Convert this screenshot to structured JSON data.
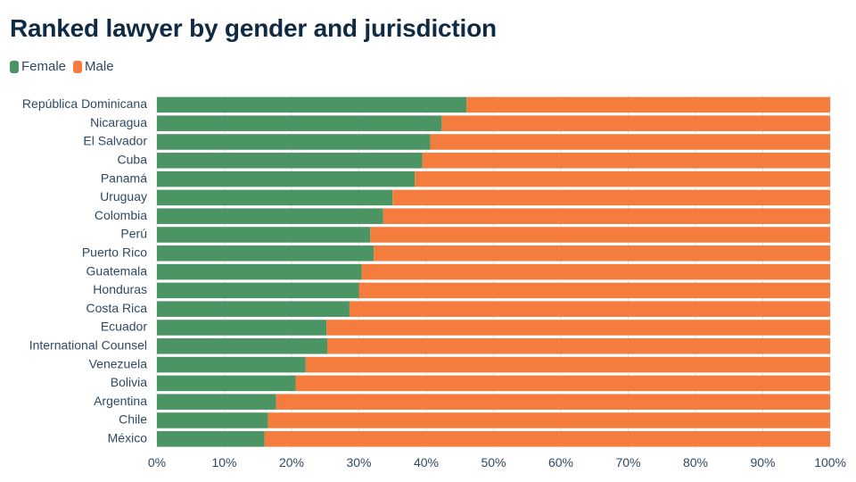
{
  "chart_data": {
    "type": "bar",
    "orientation": "horizontal",
    "stacked": true,
    "title": "Ranked lawyer by gender and jurisdiction",
    "legend_position": "top-left",
    "grid": true,
    "xlim": [
      0,
      100
    ],
    "x_ticks": [
      "0%",
      "10%",
      "20%",
      "30%",
      "40%",
      "50%",
      "60%",
      "70%",
      "80%",
      "90%",
      "100%"
    ],
    "categories": [
      "República Dominicana",
      "Nicaragua",
      "El Salvador",
      "Cuba",
      "Panamá",
      "Uruguay",
      "Colombia",
      "Perú",
      "Puerto Rico",
      "Guatemala",
      "Honduras",
      "Costa Rica",
      "Ecuador",
      "International Counsel",
      "Venezuela",
      "Bolivia",
      "Argentina",
      "Chile",
      "México"
    ],
    "series": [
      {
        "name": "Female",
        "color": "#4a9563",
        "values": [
          46,
          42.3,
          40.6,
          39.4,
          38.3,
          35,
          33.6,
          31.7,
          32.2,
          30.4,
          30,
          28.6,
          25.2,
          25.3,
          22.1,
          20.6,
          17.7,
          16.5,
          16
        ]
      },
      {
        "name": "Male",
        "color": "#f47c3c",
        "values": [
          54,
          57.7,
          59.4,
          60.6,
          61.7,
          65,
          66.4,
          68.3,
          67.8,
          69.6,
          70,
          71.4,
          74.8,
          74.7,
          77.9,
          79.4,
          82.3,
          83.5,
          84
        ]
      }
    ]
  }
}
